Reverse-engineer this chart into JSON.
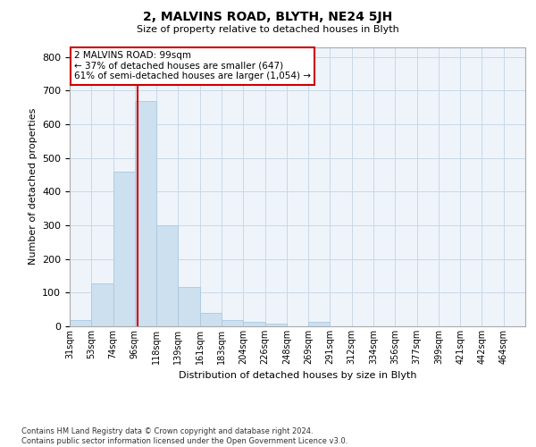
{
  "title_line1": "2, MALVINS ROAD, BLYTH, NE24 5JH",
  "title_line2": "Size of property relative to detached houses in Blyth",
  "xlabel": "Distribution of detached houses by size in Blyth",
  "ylabel": "Number of detached properties",
  "footnote": "Contains HM Land Registry data © Crown copyright and database right 2024.\nContains public sector information licensed under the Open Government Licence v3.0.",
  "annotation_line1": "2 MALVINS ROAD: 99sqm",
  "annotation_line2": "← 37% of detached houses are smaller (647)",
  "annotation_line3": "61% of semi-detached houses are larger (1,054) →",
  "bar_color": "#cce0f0",
  "bar_edgecolor": "#aac8e0",
  "vline_color": "#cc0000",
  "vline_x": 3,
  "categories": [
    "31sqm",
    "53sqm",
    "74sqm",
    "96sqm",
    "118sqm",
    "139sqm",
    "161sqm",
    "183sqm",
    "204sqm",
    "226sqm",
    "248sqm",
    "269sqm",
    "291sqm",
    "312sqm",
    "334sqm",
    "356sqm",
    "377sqm",
    "399sqm",
    "421sqm",
    "442sqm",
    "464sqm"
  ],
  "values": [
    18,
    128,
    460,
    670,
    300,
    118,
    40,
    18,
    13,
    8,
    0,
    12,
    0,
    0,
    0,
    0,
    0,
    0,
    0,
    0,
    0
  ],
  "ylim": [
    0,
    830
  ],
  "yticks": [
    0,
    100,
    200,
    300,
    400,
    500,
    600,
    700,
    800
  ],
  "background_color": "#ffffff",
  "plot_bg_color": "#eef4fa",
  "grid_color": "#c8d8e8",
  "annotation_box_color": "#ffffff",
  "annotation_box_edgecolor": "#cc0000",
  "title1_fontsize": 10,
  "title2_fontsize": 8,
  "ylabel_fontsize": 8,
  "xlabel_fontsize": 8,
  "ytick_fontsize": 8,
  "xtick_fontsize": 7,
  "footnote_fontsize": 6,
  "annot_fontsize": 7.5
}
